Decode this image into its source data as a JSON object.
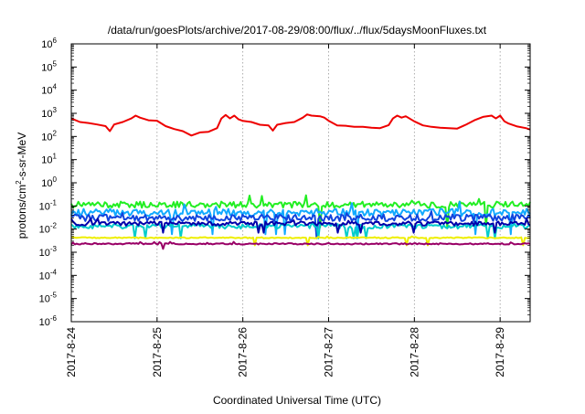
{
  "chart_data": {
    "type": "line",
    "title": "/data/run/goesPlots/archive/2017-08-29/08:00/flux/../flux/5daysMoonFluxes.txt",
    "xlabel": "Coordinated Universal Time (UTC)",
    "ylabel": {
      "base": "protons/cm",
      "sup": "2",
      "rest": "-s-sr-MeV"
    },
    "x_ticks": [
      "2017-8-24",
      "2017-8-25",
      "2017-8-26",
      "2017-8-27",
      "2017-8-28",
      "2017-8-29"
    ],
    "x_range_days": [
      0,
      5.35
    ],
    "y_scale": "log",
    "y_ticks": [
      {
        "exp": -6,
        "label": "10",
        "sup": "-6"
      },
      {
        "exp": -5,
        "label": "10",
        "sup": "-5"
      },
      {
        "exp": -4,
        "label": "10",
        "sup": "-4"
      },
      {
        "exp": -3,
        "label": "10",
        "sup": "-3"
      },
      {
        "exp": -2,
        "label": "10",
        "sup": "-2"
      },
      {
        "exp": -1,
        "label": "10",
        "sup": "-1"
      },
      {
        "exp": 0,
        "label": "10",
        "sup": "0"
      },
      {
        "exp": 1,
        "label": "10",
        "sup": "1"
      },
      {
        "exp": 2,
        "label": "10",
        "sup": "2"
      },
      {
        "exp": 3,
        "label": "10",
        "sup": "3"
      },
      {
        "exp": 4,
        "label": "10",
        "sup": "4"
      },
      {
        "exp": 5,
        "label": "10",
        "sup": "5"
      },
      {
        "exp": 6,
        "label": "10",
        "sup": "6"
      }
    ],
    "ylim": [
      1e-06,
      1000000.0
    ],
    "grid": {
      "vertical": true,
      "horizontal": false
    },
    "series": [
      {
        "color": "#ee0000",
        "values": [
          {
            "x": 0.0,
            "y": 600
          },
          {
            "x": 0.1,
            "y": 420
          },
          {
            "x": 0.2,
            "y": 380
          },
          {
            "x": 0.3,
            "y": 330
          },
          {
            "x": 0.4,
            "y": 280
          },
          {
            "x": 0.45,
            "y": 170
          },
          {
            "x": 0.5,
            "y": 330
          },
          {
            "x": 0.6,
            "y": 420
          },
          {
            "x": 0.7,
            "y": 600
          },
          {
            "x": 0.75,
            "y": 800
          },
          {
            "x": 0.8,
            "y": 650
          },
          {
            "x": 0.9,
            "y": 500
          },
          {
            "x": 1.0,
            "y": 480
          },
          {
            "x": 1.1,
            "y": 280
          },
          {
            "x": 1.2,
            "y": 210
          },
          {
            "x": 1.3,
            "y": 170
          },
          {
            "x": 1.4,
            "y": 110
          },
          {
            "x": 1.5,
            "y": 150
          },
          {
            "x": 1.6,
            "y": 160
          },
          {
            "x": 1.7,
            "y": 230
          },
          {
            "x": 1.75,
            "y": 600
          },
          {
            "x": 1.8,
            "y": 850
          },
          {
            "x": 1.85,
            "y": 600
          },
          {
            "x": 1.9,
            "y": 800
          },
          {
            "x": 1.95,
            "y": 550
          },
          {
            "x": 2.0,
            "y": 470
          },
          {
            "x": 2.1,
            "y": 420
          },
          {
            "x": 2.2,
            "y": 320
          },
          {
            "x": 2.3,
            "y": 300
          },
          {
            "x": 2.35,
            "y": 180
          },
          {
            "x": 2.4,
            "y": 320
          },
          {
            "x": 2.5,
            "y": 380
          },
          {
            "x": 2.6,
            "y": 420
          },
          {
            "x": 2.7,
            "y": 650
          },
          {
            "x": 2.75,
            "y": 900
          },
          {
            "x": 2.8,
            "y": 800
          },
          {
            "x": 2.9,
            "y": 750
          },
          {
            "x": 2.95,
            "y": 650
          },
          {
            "x": 3.0,
            "y": 480
          },
          {
            "x": 3.1,
            "y": 300
          },
          {
            "x": 3.2,
            "y": 290
          },
          {
            "x": 3.3,
            "y": 260
          },
          {
            "x": 3.4,
            "y": 260
          },
          {
            "x": 3.5,
            "y": 240
          },
          {
            "x": 3.6,
            "y": 230
          },
          {
            "x": 3.7,
            "y": 310
          },
          {
            "x": 3.75,
            "y": 600
          },
          {
            "x": 3.8,
            "y": 800
          },
          {
            "x": 3.85,
            "y": 650
          },
          {
            "x": 3.9,
            "y": 750
          },
          {
            "x": 4.0,
            "y": 450
          },
          {
            "x": 4.1,
            "y": 300
          },
          {
            "x": 4.2,
            "y": 260
          },
          {
            "x": 4.3,
            "y": 240
          },
          {
            "x": 4.4,
            "y": 230
          },
          {
            "x": 4.5,
            "y": 220
          },
          {
            "x": 4.6,
            "y": 320
          },
          {
            "x": 4.7,
            "y": 500
          },
          {
            "x": 4.8,
            "y": 700
          },
          {
            "x": 4.9,
            "y": 800
          },
          {
            "x": 4.95,
            "y": 600
          },
          {
            "x": 5.0,
            "y": 800
          },
          {
            "x": 5.05,
            "y": 450
          },
          {
            "x": 5.1,
            "y": 360
          },
          {
            "x": 5.2,
            "y": 270
          },
          {
            "x": 5.3,
            "y": 230
          },
          {
            "x": 5.35,
            "y": 200
          }
        ]
      },
      {
        "color": "#22ee22",
        "base": 0.11,
        "amp": 0.45,
        "dips": 0.012,
        "seed": 11
      },
      {
        "color": "#11aaff",
        "base": 0.05,
        "amp": 0.55,
        "dips": 0.006,
        "seed": 23
      },
      {
        "color": "#1144dd",
        "base": 0.03,
        "amp": 0.5,
        "dips": 0.004,
        "seed": 37
      },
      {
        "color": "#00cccc",
        "base": 0.013,
        "amp": 0.35,
        "dips": 0.004,
        "seed": 41
      },
      {
        "color": "#0000aa",
        "base": 0.017,
        "amp": 0.3,
        "dips": 0.007,
        "seed": 53
      },
      {
        "color": "#eeee00",
        "base": 0.0042,
        "amp": 0.08,
        "dips": 0.002,
        "seed": 61
      },
      {
        "color": "#990066",
        "base": 0.0023,
        "amp": 0.1,
        "dips": 0.0014,
        "seed": 71
      }
    ]
  }
}
